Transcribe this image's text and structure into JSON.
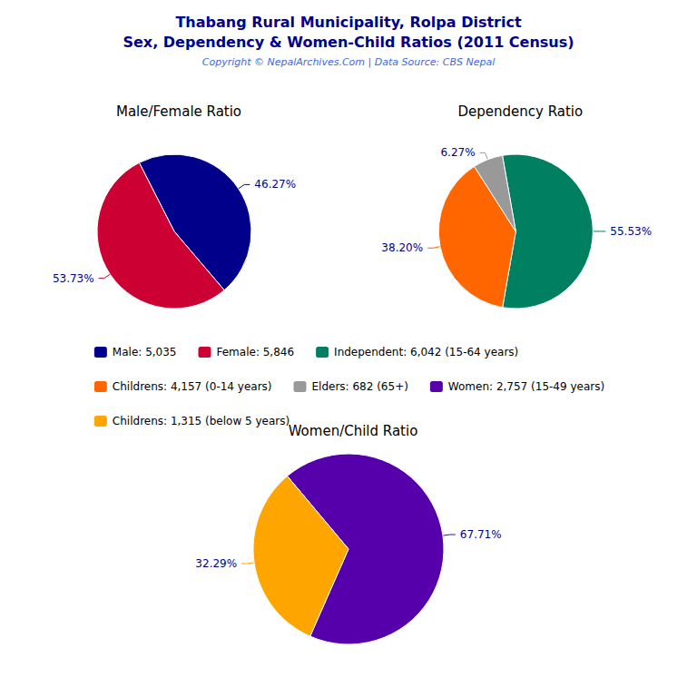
{
  "title": "Thabang Rural Municipality, Rolpa District\nSex, Dependency & Women-Child Ratios (2011 Census)",
  "subtitle": "Copyright © NepalArchives.Com | Data Source: CBS Nepal",
  "chart_data": [
    {
      "type": "pie",
      "title": "Male/Female Ratio",
      "categories": [
        "Male: 5,035",
        "Female: 5,846"
      ],
      "values": [
        46.27,
        53.73
      ],
      "value_labels": [
        "46.27%",
        "53.73%"
      ],
      "colors": [
        "#00008B",
        "#CC0033"
      ],
      "data_labels": true,
      "legend": "center"
    },
    {
      "type": "pie",
      "title": "Dependency Ratio",
      "categories": [
        "Independent: 6,042 (15-64 years)",
        "Childrens: 4,157 (0-14 years)",
        "Elders: 682 (65+)"
      ],
      "values": [
        55.53,
        38.2,
        6.27
      ],
      "value_labels": [
        "55.53%",
        "38.20%",
        "6.27%"
      ],
      "colors": [
        "#008060",
        "#FF6600",
        "#999999"
      ],
      "data_labels": true,
      "legend": "center"
    },
    {
      "type": "pie",
      "title": "Women/Child Ratio",
      "categories": [
        "Women: 2,757 (15-49 years)",
        "Childrens: 1,315 (below 5 years)"
      ],
      "values": [
        67.71,
        32.29
      ],
      "value_labels": [
        "67.71%",
        "32.29%"
      ],
      "colors": [
        "#5500AA",
        "#FFA500"
      ],
      "data_labels": true,
      "legend": "center"
    }
  ]
}
